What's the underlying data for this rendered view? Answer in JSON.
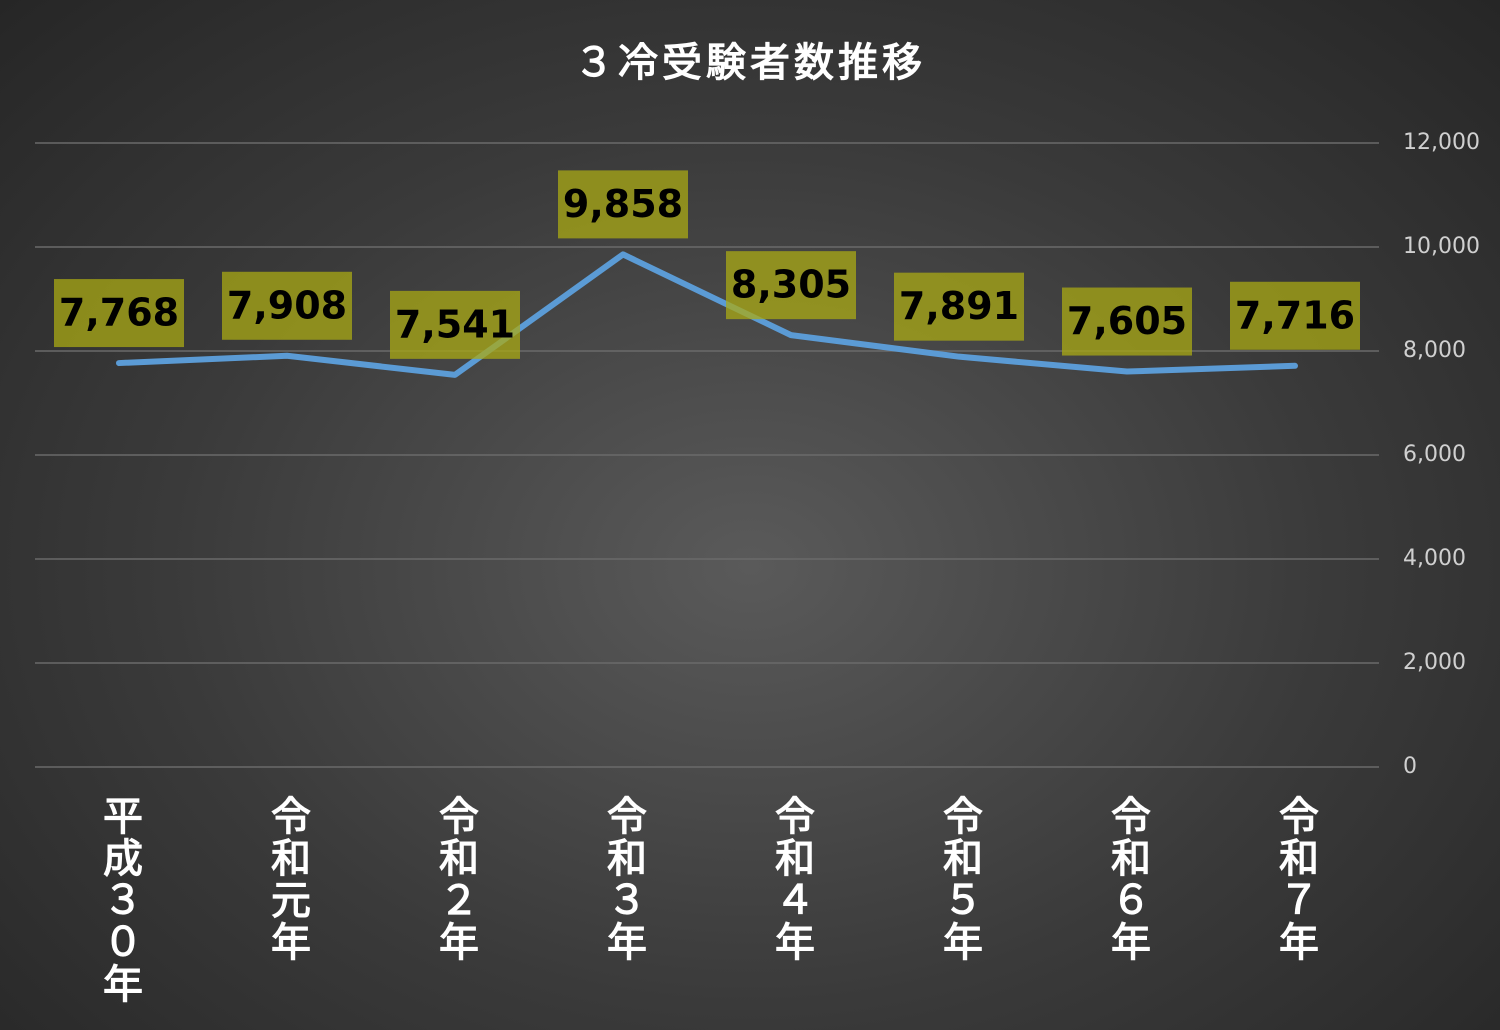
{
  "chart_data": {
    "type": "line",
    "title": "３冷受験者数推移",
    "categories": [
      "平成３０年",
      "令和元年",
      "令和２年",
      "令和３年",
      "令和４年",
      "令和５年",
      "令和６年",
      "令和７年"
    ],
    "series": [
      {
        "name": "受験者数",
        "color": "#5b9bd5",
        "values": [
          7768,
          7908,
          7541,
          9858,
          8305,
          7891,
          7605,
          7716
        ],
        "value_labels": [
          "7,768",
          "7,908",
          "7,541",
          "9,858",
          "8,305",
          "7,891",
          "7,605",
          "7,716"
        ]
      }
    ],
    "ylim": [
      0,
      12000
    ],
    "yticks": [
      0,
      {
        "value": 2000,
        "label": "2,000"
      },
      {
        "value": 4000,
        "label": "4,000"
      },
      {
        "value": 6000,
        "label": "6,000"
      },
      {
        "value": 8000,
        "label": "8,000"
      },
      {
        "value": 10000,
        "label": "10,000"
      },
      {
        "value": 12000,
        "label": "12,000"
      }
    ],
    "grid": true
  }
}
